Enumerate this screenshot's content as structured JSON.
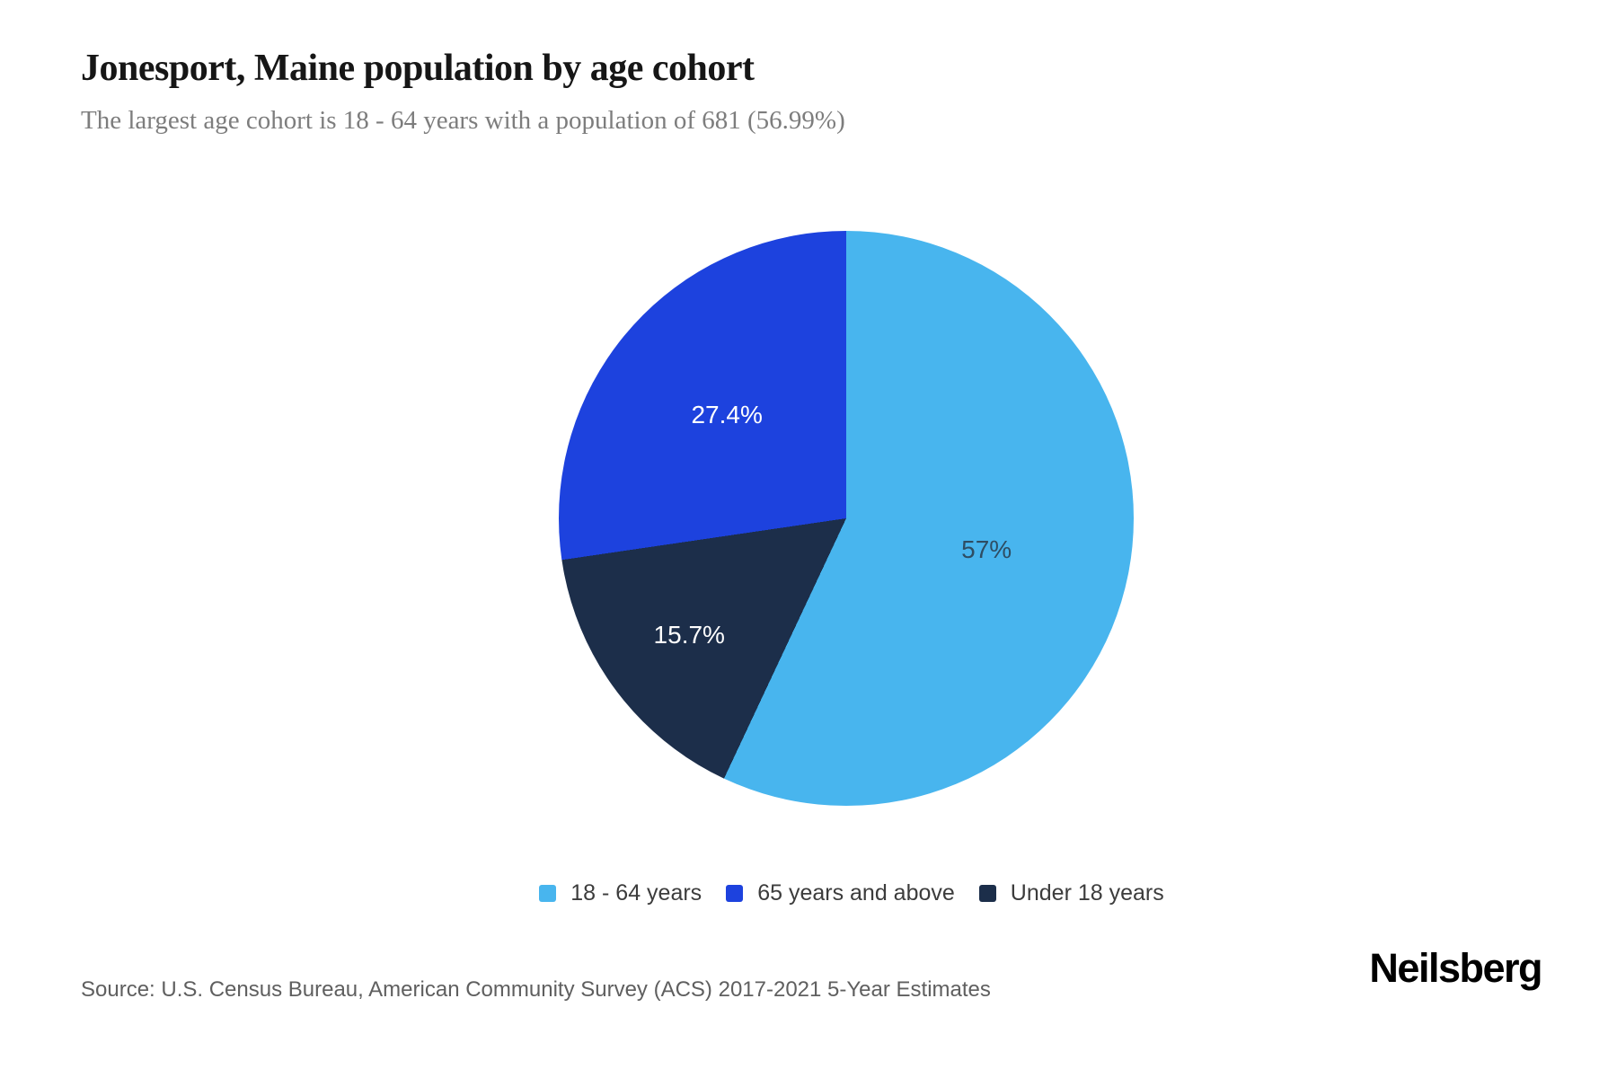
{
  "header": {
    "title": "Jonesport, Maine population by age cohort",
    "subtitle": "The largest age cohort is 18 - 64 years with a population of 681 (56.99%)"
  },
  "footer": {
    "source": "Source: U.S. Census Bureau, American Community Survey (ACS) 2017-2021 5-Year Estimates",
    "brand": "Neilsberg"
  },
  "colors": {
    "background": "#ffffff",
    "title_text": "#161616",
    "subtitle_text": "#7d7d7d",
    "legend_text": "#3c3c3c",
    "source_text": "#5f5f5f"
  },
  "chart_data": {
    "type": "pie",
    "title": "Jonesport, Maine population by age cohort",
    "largest_cohort": {
      "label": "18 - 64 years",
      "population": 681,
      "pct": 56.99
    },
    "slices": [
      {
        "label": "18 - 64 years",
        "pct": 56.99,
        "display_pct": "57%",
        "color": "#48b5ee",
        "label_color": "#2e4d63",
        "label_r": 0.5
      },
      {
        "label": "65 years and above",
        "pct": 27.4,
        "display_pct": "27.4%",
        "color": "#1d42de",
        "label_color": "#ffffff",
        "label_r": 0.55
      },
      {
        "label": "Under 18 years",
        "pct": 15.7,
        "display_pct": "15.7%",
        "color": "#1c2e4a",
        "label_color": "#ffffff",
        "label_r": 0.68
      }
    ],
    "draw_order": [
      0,
      2,
      1
    ],
    "start_angle_deg": 0,
    "direction": "clockwise",
    "legend_position": "bottom",
    "grid": false
  }
}
